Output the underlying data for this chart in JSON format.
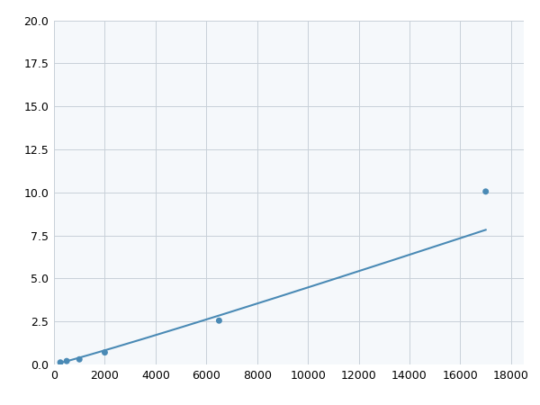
{
  "x_points": [
    250,
    500,
    1000,
    2000,
    6500,
    17000
  ],
  "y_points": [
    0.12,
    0.2,
    0.3,
    0.7,
    2.55,
    10.05
  ],
  "line_color": "#4a8ab5",
  "marker_color": "#4a8ab5",
  "marker_size": 5,
  "line_width": 1.5,
  "xlim": [
    0,
    18500
  ],
  "ylim": [
    0,
    20.0
  ],
  "xticks": [
    0,
    2000,
    4000,
    6000,
    8000,
    10000,
    12000,
    14000,
    16000,
    18000
  ],
  "yticks": [
    0.0,
    2.5,
    5.0,
    7.5,
    10.0,
    12.5,
    15.0,
    17.5,
    20.0
  ],
  "grid_color": "#c8d0d8",
  "background_color": "#f5f8fb",
  "figure_background": "#ffffff"
}
